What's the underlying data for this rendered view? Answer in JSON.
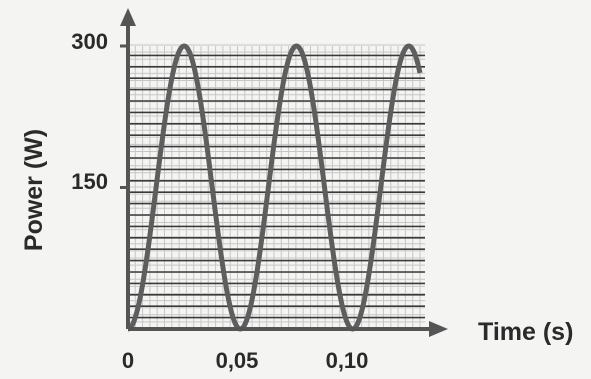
{
  "chart_data": {
    "type": "line",
    "title": "",
    "xlabel": "Time (s)",
    "ylabel": "Power (W)",
    "xlim": [
      0,
      0.13
    ],
    "ylim": [
      0,
      300
    ],
    "x_ticks": [
      {
        "value": 0,
        "label": "0"
      },
      {
        "value": 0.05,
        "label": "0,05"
      },
      {
        "value": 0.1,
        "label": "0,10"
      }
    ],
    "y_ticks": [
      {
        "value": 150,
        "label": "150"
      },
      {
        "value": 300,
        "label": "300"
      }
    ],
    "grid": true,
    "series": [
      {
        "function": "P = 150 - 150*cos(2*pi*t/0.05)",
        "x": [
          0,
          0.0125,
          0.025,
          0.0375,
          0.05,
          0.0625,
          0.075,
          0.0875,
          0.1,
          0.1125,
          0.125,
          0.13
        ],
        "values": [
          0,
          150,
          300,
          150,
          0,
          150,
          300,
          150,
          0,
          150,
          300,
          270
        ]
      }
    ]
  },
  "colors": {
    "background": "#f4f4f2",
    "axis": "#555555",
    "curve": "#5e5e5e",
    "grid_minor": "#c6c6c6",
    "grid_major": "#3a3a3a"
  }
}
